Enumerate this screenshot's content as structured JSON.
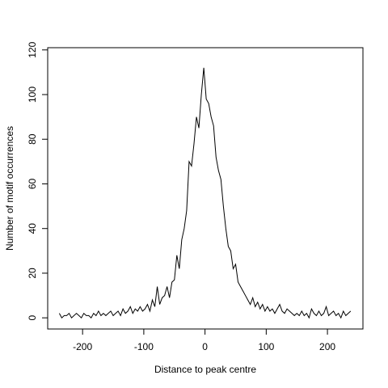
{
  "chart_data": {
    "type": "line",
    "xlabel": "Distance to peak centre",
    "ylabel": "Number of motif occurrences",
    "x": [
      -238,
      -234,
      -230,
      -226,
      -222,
      -218,
      -214,
      -210,
      -206,
      -202,
      -198,
      -194,
      -190,
      -186,
      -182,
      -178,
      -174,
      -170,
      -166,
      -162,
      -158,
      -154,
      -150,
      -146,
      -142,
      -138,
      -134,
      -130,
      -126,
      -122,
      -118,
      -114,
      -110,
      -106,
      -102,
      -98,
      -94,
      -90,
      -86,
      -82,
      -78,
      -74,
      -70,
      -66,
      -62,
      -58,
      -54,
      -50,
      -46,
      -42,
      -38,
      -34,
      -30,
      -26,
      -22,
      -18,
      -14,
      -10,
      -6,
      -2,
      2,
      6,
      10,
      14,
      18,
      22,
      26,
      30,
      34,
      38,
      42,
      46,
      50,
      54,
      58,
      62,
      66,
      70,
      74,
      78,
      82,
      86,
      90,
      94,
      98,
      102,
      106,
      110,
      114,
      118,
      122,
      126,
      130,
      134,
      138,
      142,
      146,
      150,
      154,
      158,
      162,
      166,
      170,
      174,
      178,
      182,
      186,
      190,
      194,
      198,
      202,
      206,
      210,
      214,
      218,
      222,
      226,
      230,
      234,
      238
    ],
    "series": [
      {
        "color": "#000000",
        "values": [
          2,
          0,
          1,
          1,
          2,
          0,
          1,
          2,
          1,
          0,
          2,
          1,
          1,
          0,
          2,
          1,
          3,
          1,
          2,
          1,
          2,
          3,
          1,
          2,
          3,
          1,
          4,
          2,
          3,
          5,
          2,
          4,
          3,
          5,
          3,
          4,
          6,
          3,
          8,
          5,
          14,
          6,
          9,
          10,
          14,
          9,
          16,
          17,
          28,
          22,
          35,
          40,
          48,
          70,
          68,
          78,
          90,
          85,
          100,
          112,
          98,
          96,
          90,
          86,
          72,
          66,
          62,
          50,
          40,
          32,
          30,
          22,
          24,
          16,
          14,
          12,
          10,
          8,
          6,
          9,
          5,
          7,
          4,
          6,
          3,
          5,
          3,
          4,
          2,
          4,
          6,
          3,
          2,
          4,
          3,
          2,
          1,
          2,
          1,
          3,
          1,
          2,
          0,
          4,
          2,
          1,
          3,
          1,
          2,
          5,
          1,
          2,
          3,
          1,
          2,
          0,
          3,
          1,
          2,
          3
        ]
      }
    ],
    "xlim": [
      -257,
      258
    ],
    "ylim": [
      -5,
      121
    ],
    "xticks": [
      -200,
      -100,
      0,
      100,
      200
    ],
    "yticks": [
      0,
      20,
      40,
      60,
      80,
      100,
      120
    ]
  }
}
